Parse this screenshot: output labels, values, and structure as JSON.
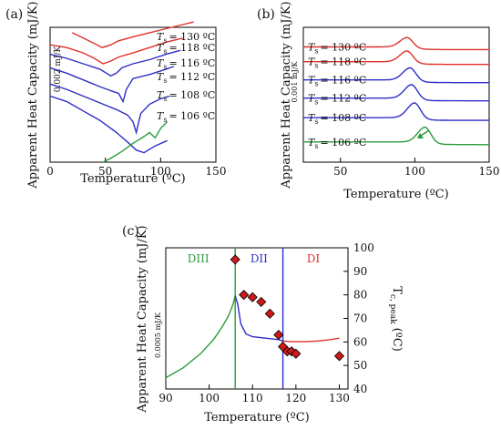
{
  "chart_data": [
    {
      "panel": "(a)",
      "type": "line",
      "xlabel": "Temperature (ºC)",
      "ylabel": "Apparent Heat Capacity (mJ/K)",
      "xlim": [
        0,
        150
      ],
      "xticks": [
        0,
        50,
        100,
        150
      ],
      "scale_bar_label": "0.002 mJ/K",
      "series": [
        {
          "name": "T_s = 130 ºC",
          "label_main": "T",
          "label_sub": "s",
          "label_rest": "= 130 ºC",
          "color": "#e0302a",
          "points": [
            [
              20,
              0.96
            ],
            [
              30,
              0.92
            ],
            [
              40,
              0.88
            ],
            [
              47,
              0.85
            ],
            [
              55,
              0.87
            ],
            [
              62,
              0.9
            ],
            [
              75,
              0.93
            ],
            [
              90,
              0.96
            ],
            [
              105,
              0.99
            ],
            [
              120,
              1.02
            ],
            [
              130,
              1.04
            ]
          ]
        },
        {
          "name": "T_s = 118 ºC",
          "label_main": "T",
          "label_sub": "s",
          "label_rest": "= 118 ºC",
          "color": "#e0302a",
          "points": [
            [
              0,
              0.87
            ],
            [
              15,
              0.85
            ],
            [
              30,
              0.81
            ],
            [
              40,
              0.77
            ],
            [
              48,
              0.73
            ],
            [
              55,
              0.75
            ],
            [
              62,
              0.78
            ],
            [
              75,
              0.81
            ],
            [
              90,
              0.85
            ],
            [
              105,
              0.89
            ],
            [
              120,
              0.92
            ]
          ]
        },
        {
          "name": "T_s = 116 ºC",
          "label_main": "T",
          "label_sub": "s",
          "label_rest": "= 116 ºC",
          "color": "#2d2dc8",
          "points": [
            [
              0,
              0.8
            ],
            [
              15,
              0.77
            ],
            [
              30,
              0.73
            ],
            [
              45,
              0.69
            ],
            [
              55,
              0.64
            ],
            [
              60,
              0.66
            ],
            [
              65,
              0.7
            ],
            [
              75,
              0.73
            ],
            [
              90,
              0.76
            ],
            [
              105,
              0.8
            ],
            [
              118,
              0.83
            ]
          ]
        },
        {
          "name": "T_s = 112 ºC",
          "label_main": "T",
          "label_sub": "s",
          "label_rest": "= 112 ºC",
          "color": "#2d2dc8",
          "points": [
            [
              0,
              0.7
            ],
            [
              15,
              0.66
            ],
            [
              30,
              0.61
            ],
            [
              45,
              0.56
            ],
            [
              55,
              0.53
            ],
            [
              62,
              0.51
            ],
            [
              66,
              0.45
            ],
            [
              69,
              0.54
            ],
            [
              75,
              0.62
            ],
            [
              90,
              0.65
            ],
            [
              105,
              0.69
            ],
            [
              112,
              0.71
            ]
          ]
        },
        {
          "name": "T_s = 108 ºC",
          "label_main": "T",
          "label_sub": "s",
          "label_rest": "= 108 ºC",
          "color": "#2d2dc8",
          "points": [
            [
              0,
              0.58
            ],
            [
              15,
              0.54
            ],
            [
              30,
              0.49
            ],
            [
              45,
              0.44
            ],
            [
              60,
              0.39
            ],
            [
              70,
              0.35
            ],
            [
              75,
              0.3
            ],
            [
              78,
              0.22
            ],
            [
              82,
              0.36
            ],
            [
              90,
              0.43
            ],
            [
              100,
              0.47
            ],
            [
              108,
              0.49
            ]
          ]
        },
        {
          "name": "T_s = 106 ºC",
          "label_main": "T",
          "label_sub": "s",
          "label_rest": "= 106 ºC",
          "color": "#2d2dc8",
          "points": [
            [
              0,
              0.49
            ],
            [
              15,
              0.45
            ],
            [
              30,
              0.38
            ],
            [
              45,
              0.31
            ],
            [
              60,
              0.22
            ],
            [
              70,
              0.15
            ],
            [
              78,
              0.09
            ],
            [
              85,
              0.07
            ],
            [
              95,
              0.12
            ],
            [
              106,
              0.16
            ]
          ]
        },
        {
          "name": "",
          "color": "#2a9a3a",
          "points": [
            [
              48,
              0.0
            ],
            [
              55,
              0.03
            ],
            [
              65,
              0.08
            ],
            [
              75,
              0.14
            ],
            [
              85,
              0.19
            ],
            [
              90,
              0.22
            ],
            [
              95,
              0.18
            ],
            [
              100,
              0.25
            ],
            [
              106,
              0.3
            ]
          ]
        }
      ]
    },
    {
      "panel": "(b)",
      "type": "line",
      "xlabel": "Temperature (ºC)",
      "ylabel": "Apparent Heat Capacity (mJ/K)",
      "xlim": [
        25,
        150
      ],
      "xticks": [
        50,
        100,
        150
      ],
      "scale_bar_label": "0.001 mJ/K",
      "series": [
        {
          "name": "T_s = 130 ºC",
          "label_main": "T",
          "label_sub": "s",
          "label_rest": "= 130 ºC",
          "color": "#e0302a",
          "baseline": 0.855,
          "peak_x": 95,
          "amp": 0.07
        },
        {
          "name": "T_s = 118 ºC",
          "label_main": "T",
          "label_sub": "s",
          "label_rest": "= 118 ºC",
          "color": "#e0302a",
          "baseline": 0.745,
          "peak_x": 95,
          "amp": 0.08
        },
        {
          "name": "T_s = 116 ºC",
          "label_main": "T",
          "label_sub": "s",
          "label_rest": "= 116 ºC",
          "color": "#2d2dc8",
          "baseline": 0.61,
          "peak_x": 97,
          "amp": 0.09
        },
        {
          "name": "T_s = 112 ºC",
          "label_main": "T",
          "label_sub": "s",
          "label_rest": "= 112 ºC",
          "color": "#2d2dc8",
          "baseline": 0.475,
          "peak_x": 98,
          "amp": 0.1
        },
        {
          "name": "T_s = 108 ºC",
          "label_main": "T",
          "label_sub": "s",
          "label_rest": "= 108 ºC",
          "color": "#2d2dc8",
          "baseline": 0.33,
          "peak_x": 100,
          "amp": 0.11
        },
        {
          "name": "T_s = 106 ºC",
          "label_main": "T",
          "label_sub": "s",
          "label_rest": "= 106 ºC",
          "color": "#2a9a3a",
          "baseline": 0.15,
          "peak_x": 107,
          "amp": 0.11
        }
      ]
    },
    {
      "panel": "(c)",
      "type": "line+scatter",
      "xlabel": "Temperature (ºC)",
      "ylabel": "Apparent Heat Capacity (mJ/K)",
      "y2label_main": "T",
      "y2label_sub": "c, peak",
      "y2label_unit": "(ºC)",
      "xlim": [
        90,
        132
      ],
      "xticks": [
        90,
        100,
        110,
        120,
        130
      ],
      "y2lim": [
        40,
        100
      ],
      "y2ticks": [
        40,
        50,
        60,
        70,
        80,
        90,
        100
      ],
      "scale_bar_label": "0.0005 mJ/K",
      "regions": [
        {
          "label": "DIII",
          "color": "#2a9a3a",
          "x": 97.5
        },
        {
          "label": "DII",
          "color": "#2d2dc8",
          "x": 111.5
        },
        {
          "label": "DI",
          "color": "#e0302a",
          "x": 124
        }
      ],
      "vlines": [
        {
          "x": 106,
          "color": "#2a9a3a"
        },
        {
          "x": 117,
          "color": "#2d2dc8"
        }
      ],
      "scatter": {
        "name": "T_c,peak",
        "color": "#cc1a1a",
        "points": [
          [
            106,
            95
          ],
          [
            108,
            80
          ],
          [
            110,
            79
          ],
          [
            112,
            77
          ],
          [
            114,
            72
          ],
          [
            116,
            63
          ],
          [
            117,
            58
          ],
          [
            118,
            56
          ],
          [
            119,
            56
          ],
          [
            120,
            55
          ],
          [
            130,
            54
          ]
        ]
      },
      "curves": [
        {
          "color": "#2a9a3a",
          "points": [
            [
              90,
              0.08
            ],
            [
              94,
              0.15
            ],
            [
              98,
              0.25
            ],
            [
              101,
              0.35
            ],
            [
              103,
              0.44
            ],
            [
              104.5,
              0.52
            ],
            [
              105.5,
              0.6
            ],
            [
              106,
              0.66
            ]
          ]
        },
        {
          "color": "#2d2dc8",
          "points": [
            [
              106,
              0.66
            ],
            [
              106.6,
              0.6
            ],
            [
              107.3,
              0.46
            ],
            [
              108.5,
              0.39
            ],
            [
              110,
              0.37
            ],
            [
              113,
              0.36
            ],
            [
              116,
              0.35
            ],
            [
              117,
              0.34
            ]
          ]
        },
        {
          "color": "#e0302a",
          "points": [
            [
              117,
              0.34
            ],
            [
              119,
              0.335
            ],
            [
              122,
              0.335
            ],
            [
              125,
              0.34
            ],
            [
              128,
              0.35
            ],
            [
              130,
              0.36
            ]
          ]
        }
      ]
    }
  ]
}
